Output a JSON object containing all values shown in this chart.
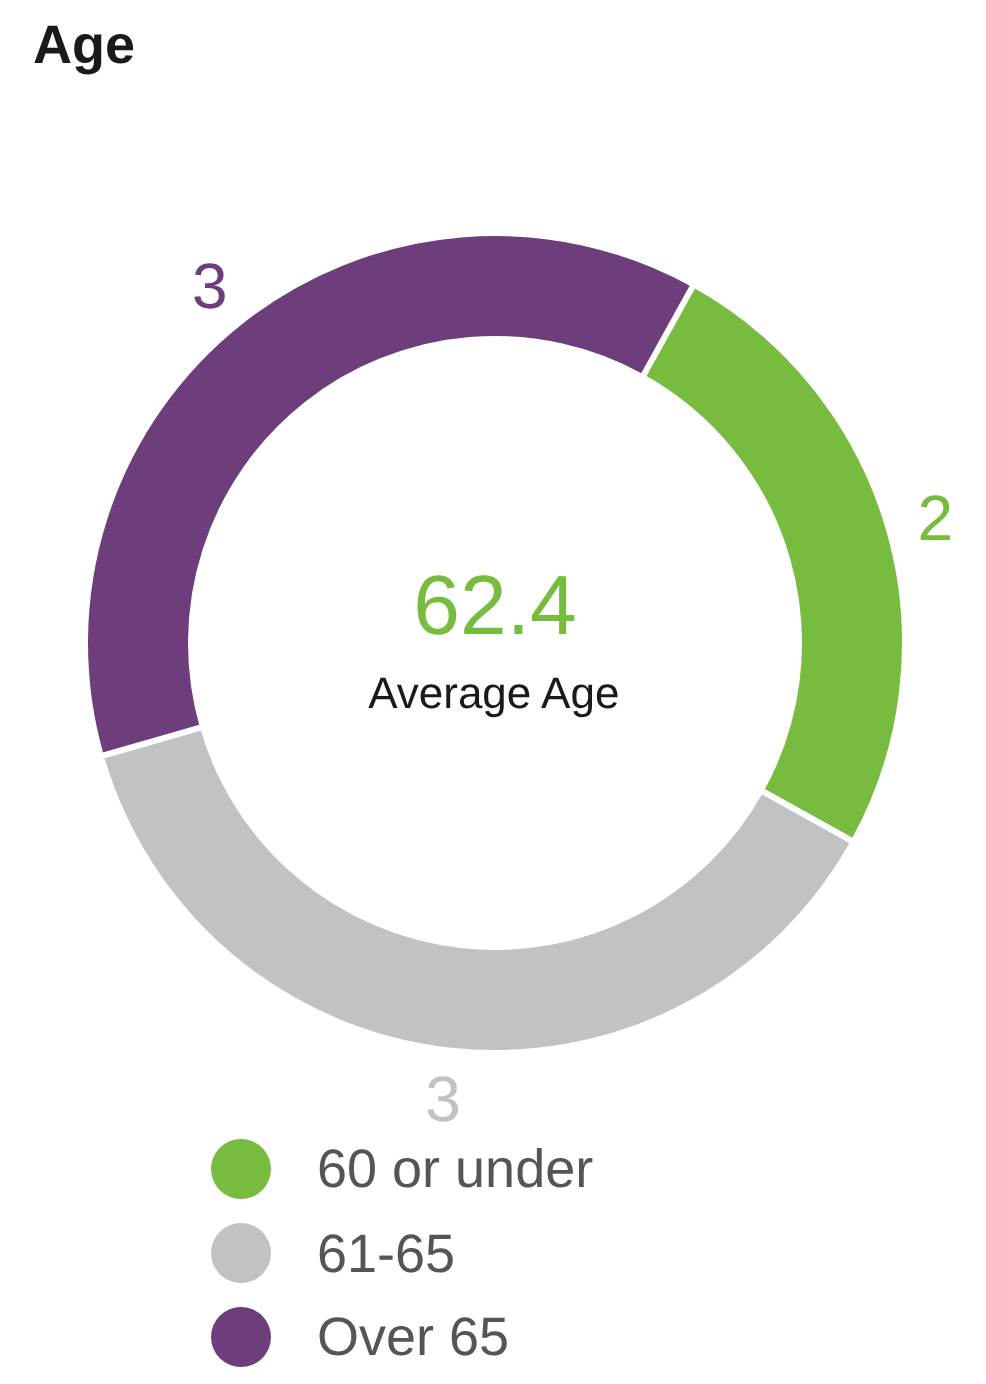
{
  "chart_data": {
    "type": "donut",
    "title": "Age",
    "categories": [
      "60 or under",
      "61-65",
      "Over 65"
    ],
    "values": [
      2,
      3,
      3
    ],
    "colors": [
      "#77bc3f",
      "#c1c2c4",
      "#6e3d7b"
    ],
    "data_labels": true,
    "legend": "bottom",
    "annotations": [
      "62.4",
      "Average Age"
    ]
  }
}
